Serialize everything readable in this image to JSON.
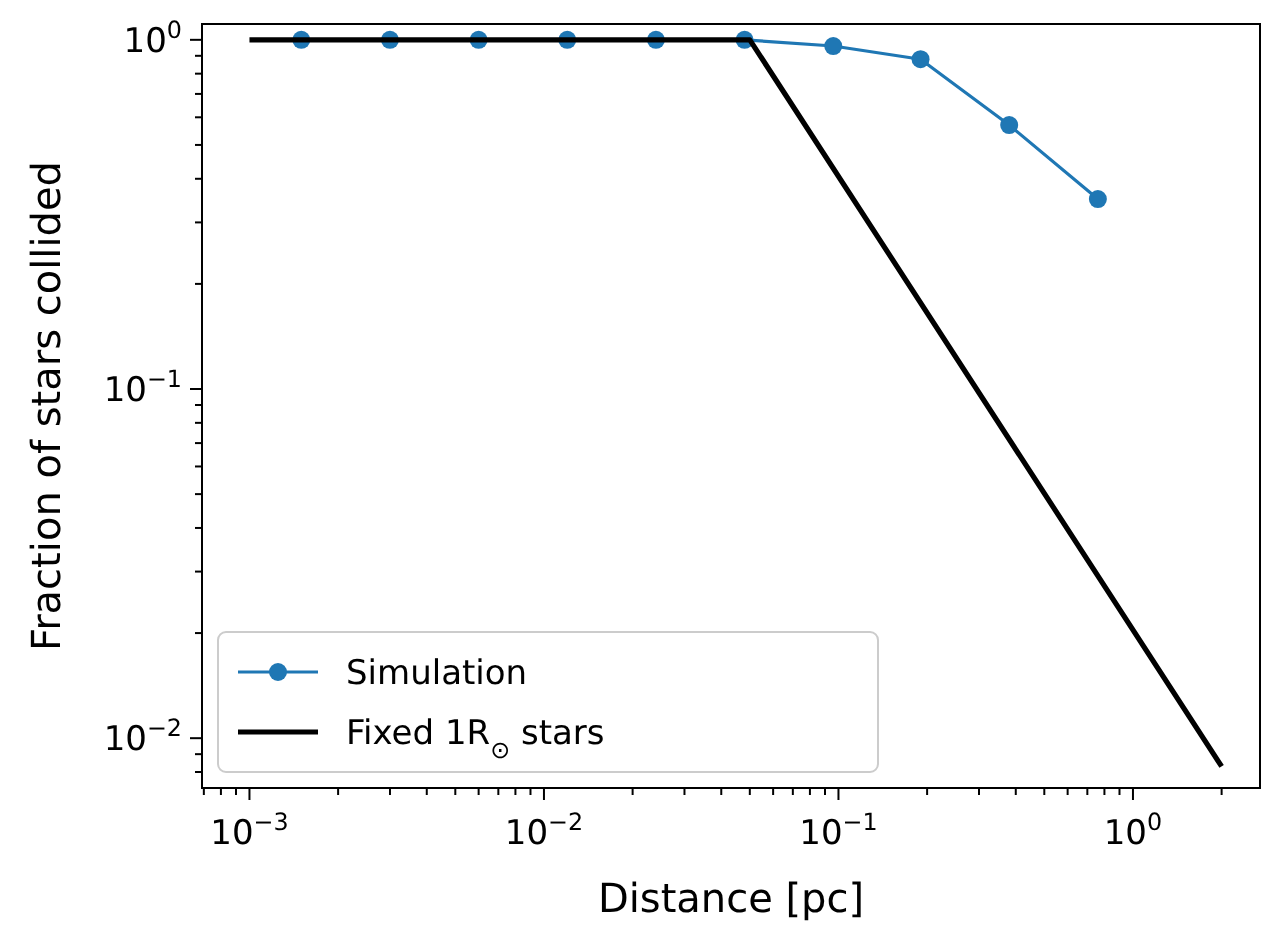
{
  "chart_data": {
    "type": "line",
    "xlabel": "Distance [pc]",
    "ylabel": "Fraction of stars collided",
    "log": "xy",
    "xlim": [
      0.00069,
      2.7
    ],
    "ylim": [
      0.0072,
      1.11
    ],
    "xticks": [
      {
        "value": 0.001,
        "label": "10$^{−3}$"
      },
      {
        "value": 0.01,
        "label": "10$^{−2}$"
      },
      {
        "value": 0.1,
        "label": "10$^{−1}$"
      },
      {
        "value": 1,
        "label": "10$^{0}$"
      }
    ],
    "yticks": [
      {
        "value": 0.01,
        "label": "10$^{−2}$"
      },
      {
        "value": 0.1,
        "label": "10$^{−1}$"
      },
      {
        "value": 1,
        "label": "10$^{0}$"
      }
    ],
    "legend": "bottom left",
    "grid": false,
    "series": [
      {
        "name": "Simulation",
        "color": "#1f77b4",
        "marker": "circle",
        "x": [
          0.0015,
          0.003,
          0.006,
          0.012,
          0.024,
          0.048,
          0.096,
          0.19,
          0.38,
          0.76
        ],
        "values": [
          1,
          1,
          1,
          1,
          1,
          1,
          0.96,
          0.88,
          0.57,
          0.35
        ]
      },
      {
        "name": "Fixed 1R$_{⊙}$ stars",
        "color": "#000000",
        "marker": "none",
        "x": [
          0.001,
          0.05,
          2
        ],
        "values": [
          1,
          1,
          0.0083
        ]
      }
    ]
  }
}
